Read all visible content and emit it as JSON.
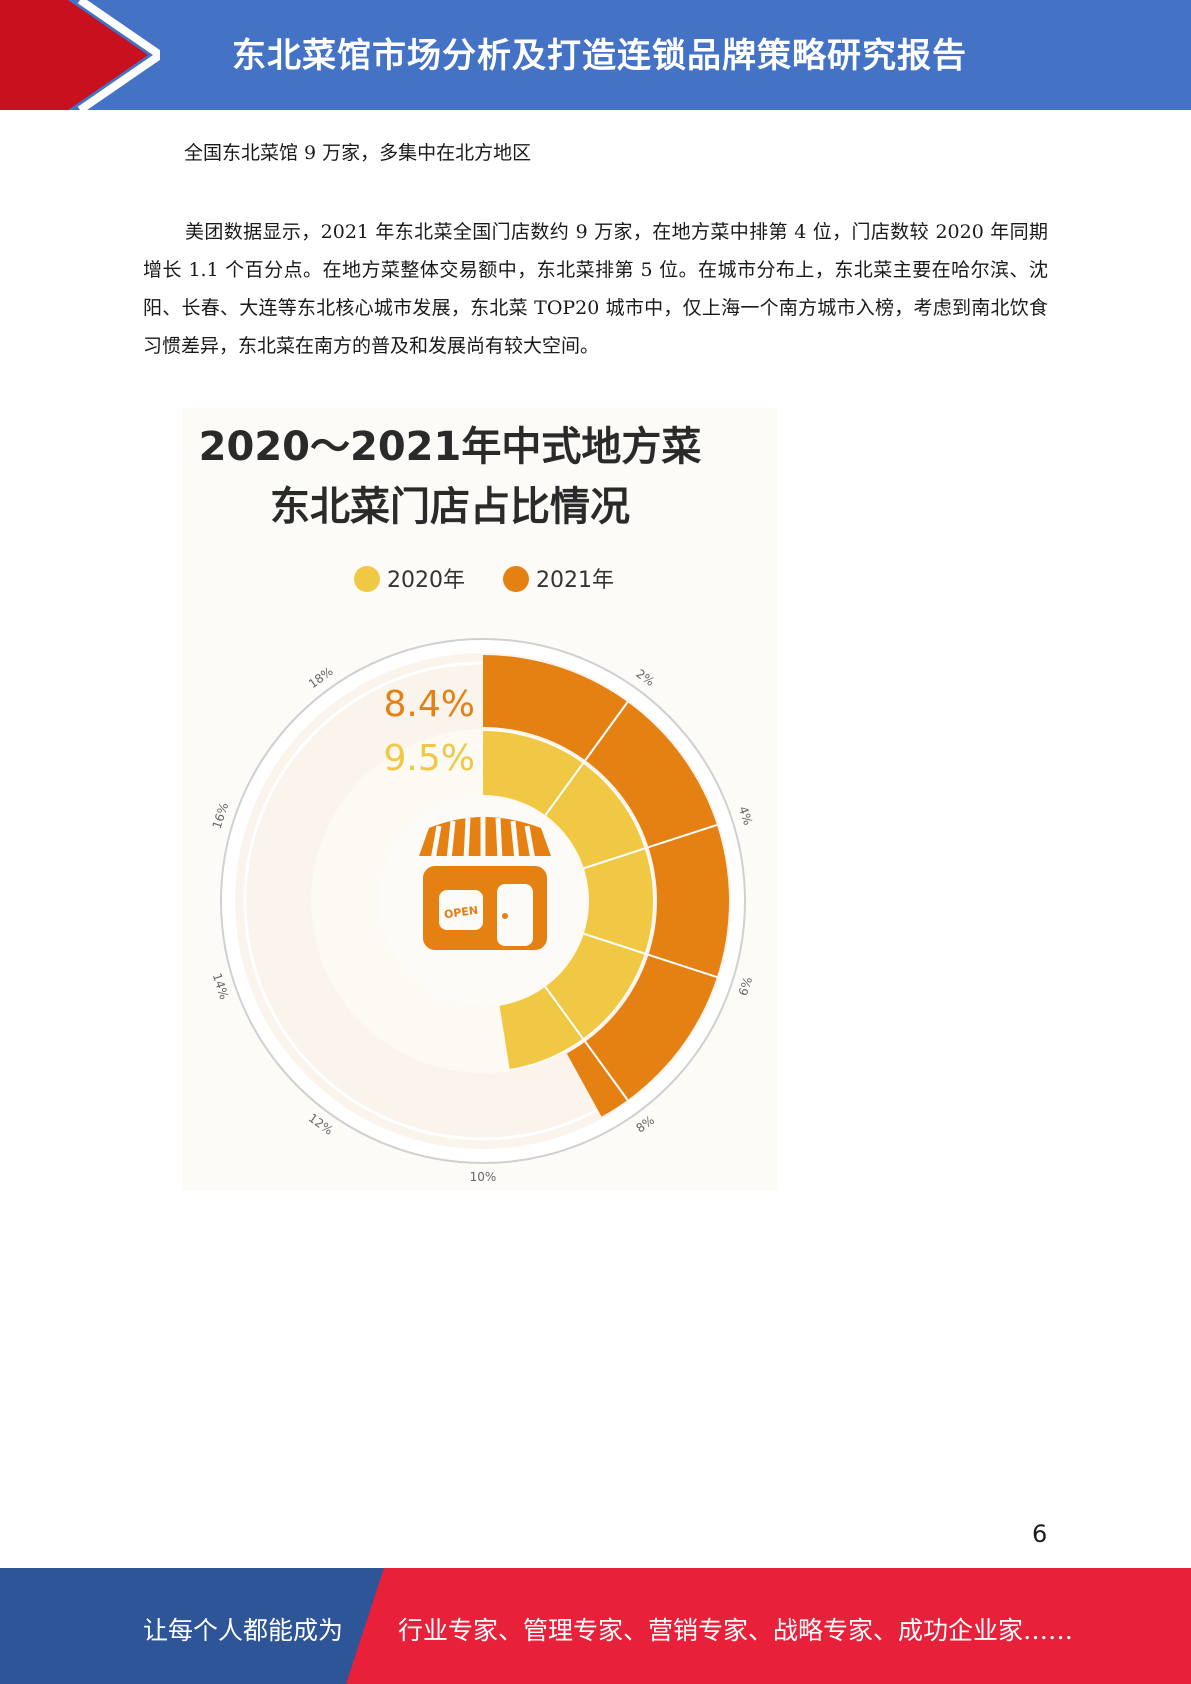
{
  "header": {
    "title": "东北菜馆市场分析及打造连锁品牌策略研究报告",
    "colors": {
      "bar": "#4472c4",
      "chevron": "#c8101e"
    }
  },
  "section_heading": "全国东北菜馆 9 万家，多集中在北方地区",
  "paragraph": "美团数据显示，2021 年东北菜全国门店数约 9 万家，在地方菜中排第 4 位，门店数较 2020 年同期增长 1.1 个百分点。在地方菜整体交易额中，东北菜排第 5 位。在城市分布上，东北菜主要在哈尔滨、沈阳、长春、大连等东北核心城市发展，东北菜 TOP20 城市中，仅上海一个南方城市入榜，考虑到南北饮食习惯差异，东北菜在南方的普及和发展尚有较大空间。",
  "chart_data": {
    "type": "radial bar",
    "title_line1": "2020～2021年中式地方菜",
    "title_line2": "东北菜门店占比情况",
    "legend": [
      "2020年",
      "2021年"
    ],
    "series": [
      {
        "name": "2020年",
        "value": 9.5,
        "label": "9.5%",
        "color": "#f0c843"
      },
      {
        "name": "2021年",
        "value": 8.4,
        "label": "8.4%",
        "color": "#e58012"
      }
    ],
    "axis_ticks": [
      "2%",
      "4%",
      "6%",
      "8%",
      "10%",
      "12%",
      "14%",
      "16%",
      "18%"
    ],
    "axis_range": [
      0,
      20
    ],
    "center_icon": "store-icon",
    "icon_sign_text": "OPEN"
  },
  "page_number": "6",
  "footer": {
    "left_text": "让每个人都能成为",
    "right_text": "行业专家、管理专家、营销专家、战略专家、成功企业家……",
    "colors": {
      "left": "#2e5597",
      "right": "#e8203a"
    }
  }
}
